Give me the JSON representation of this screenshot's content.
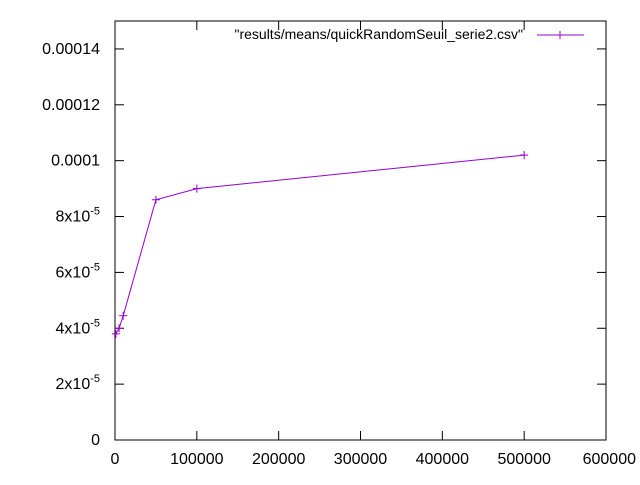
{
  "chart_data": {
    "type": "line",
    "grid": false,
    "legend_position": "top-right",
    "xlim": [
      0,
      600000
    ],
    "ylim": [
      0,
      0.00015
    ],
    "x_ticks": [
      {
        "value": 0,
        "label": "0"
      },
      {
        "value": 100000,
        "label": "100000"
      },
      {
        "value": 200000,
        "label": "200000"
      },
      {
        "value": 300000,
        "label": "300000"
      },
      {
        "value": 400000,
        "label": "400000"
      },
      {
        "value": 500000,
        "label": "500000"
      },
      {
        "value": 600000,
        "label": "600000"
      }
    ],
    "y_ticks": [
      {
        "value": 0,
        "label": "0"
      },
      {
        "value": 2e-05,
        "label": "2x10",
        "exp": "-5"
      },
      {
        "value": 4e-05,
        "label": "4x10",
        "exp": "-5"
      },
      {
        "value": 6e-05,
        "label": "6x10",
        "exp": "-5"
      },
      {
        "value": 8e-05,
        "label": "8x10",
        "exp": "-5"
      },
      {
        "value": 0.0001,
        "label": "0.0001"
      },
      {
        "value": 0.00012,
        "label": "0.00012"
      },
      {
        "value": 0.00014,
        "label": "0.00014"
      }
    ],
    "series": [
      {
        "name": "\"results/means/quickRandomSeuil_serie2.csv\"",
        "color": "#9400d3",
        "marker": "plus",
        "x": [
          1000,
          5000,
          10000,
          50000,
          100000,
          500000
        ],
        "y": [
          3.8e-05,
          4e-05,
          4.45e-05,
          8.6e-05,
          9e-05,
          0.000102
        ]
      }
    ]
  }
}
